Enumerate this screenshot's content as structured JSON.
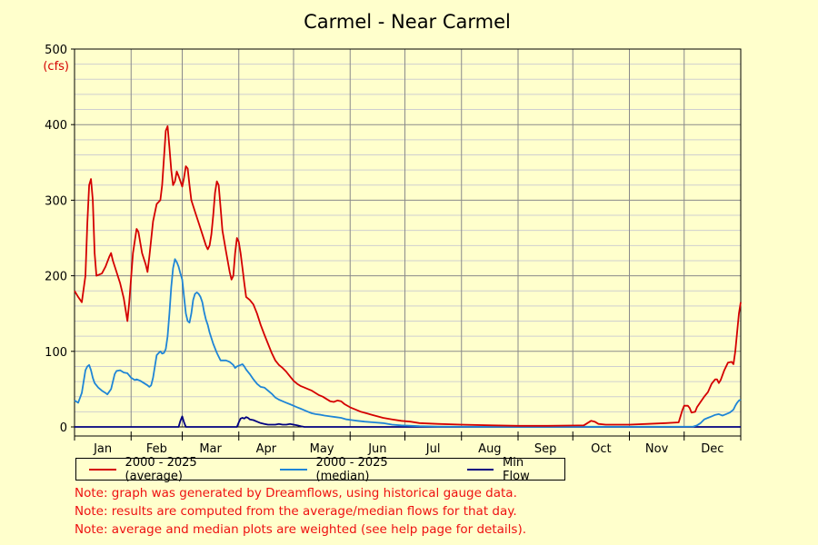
{
  "chart_data": {
    "type": "line",
    "title": "Carmel - Near Carmel",
    "ylabel": "(cfs)",
    "xlabel": "",
    "ylim": [
      0,
      500
    ],
    "xlim": [
      1,
      366
    ],
    "x_unit": "day of year",
    "yticks": [
      0,
      100,
      200,
      300,
      400,
      500
    ],
    "month_labels": [
      "Jan",
      "Feb",
      "Mar",
      "Apr",
      "May",
      "Jun",
      "Jul",
      "Aug",
      "Sep",
      "Oct",
      "Nov",
      "Dec"
    ],
    "month_boundaries": [
      1,
      32,
      60,
      91,
      121,
      152,
      182,
      213,
      244,
      274,
      305,
      335,
      366
    ],
    "grid": true,
    "legend_position": "bottom",
    "series": [
      {
        "name": "2000 - 2025 (average)",
        "color": "#d40000",
        "points": [
          [
            1,
            180
          ],
          [
            3,
            172
          ],
          [
            5,
            165
          ],
          [
            7,
            200
          ],
          [
            8,
            270
          ],
          [
            9,
            320
          ],
          [
            10,
            328
          ],
          [
            11,
            300
          ],
          [
            12,
            230
          ],
          [
            13,
            200
          ],
          [
            16,
            203
          ],
          [
            18,
            212
          ],
          [
            20,
            225
          ],
          [
            21,
            230
          ],
          [
            22,
            220
          ],
          [
            24,
            205
          ],
          [
            26,
            190
          ],
          [
            28,
            170
          ],
          [
            30,
            140
          ],
          [
            31,
            165
          ],
          [
            33,
            230
          ],
          [
            35,
            262
          ],
          [
            36,
            258
          ],
          [
            38,
            230
          ],
          [
            40,
            215
          ],
          [
            41,
            205
          ],
          [
            42,
            225
          ],
          [
            44,
            272
          ],
          [
            46,
            295
          ],
          [
            48,
            300
          ],
          [
            49,
            320
          ],
          [
            51,
            392
          ],
          [
            52,
            398
          ],
          [
            53,
            370
          ],
          [
            54,
            340
          ],
          [
            55,
            320
          ],
          [
            56,
            325
          ],
          [
            57,
            338
          ],
          [
            58,
            332
          ],
          [
            59,
            325
          ],
          [
            60,
            318
          ],
          [
            61,
            330
          ],
          [
            62,
            345
          ],
          [
            63,
            342
          ],
          [
            64,
            320
          ],
          [
            65,
            300
          ],
          [
            67,
            285
          ],
          [
            69,
            270
          ],
          [
            71,
            255
          ],
          [
            73,
            240
          ],
          [
            74,
            235
          ],
          [
            75,
            240
          ],
          [
            76,
            255
          ],
          [
            77,
            280
          ],
          [
            78,
            310
          ],
          [
            79,
            325
          ],
          [
            80,
            320
          ],
          [
            81,
            290
          ],
          [
            82,
            260
          ],
          [
            84,
            232
          ],
          [
            86,
            205
          ],
          [
            87,
            195
          ],
          [
            88,
            200
          ],
          [
            89,
            230
          ],
          [
            90,
            250
          ],
          [
            91,
            245
          ],
          [
            92,
            230
          ],
          [
            93,
            210
          ],
          [
            94,
            190
          ],
          [
            95,
            172
          ],
          [
            97,
            168
          ],
          [
            99,
            162
          ],
          [
            101,
            150
          ],
          [
            103,
            135
          ],
          [
            105,
            122
          ],
          [
            107,
            110
          ],
          [
            109,
            98
          ],
          [
            111,
            88
          ],
          [
            113,
            82
          ],
          [
            115,
            78
          ],
          [
            117,
            73
          ],
          [
            119,
            67
          ],
          [
            121,
            61
          ],
          [
            123,
            57
          ],
          [
            125,
            54
          ],
          [
            127,
            52
          ],
          [
            129,
            50
          ],
          [
            131,
            48
          ],
          [
            133,
            45
          ],
          [
            135,
            42
          ],
          [
            137,
            40
          ],
          [
            139,
            37
          ],
          [
            141,
            34
          ],
          [
            143,
            33
          ],
          [
            145,
            35
          ],
          [
            147,
            34
          ],
          [
            149,
            30
          ],
          [
            152,
            26
          ],
          [
            155,
            23
          ],
          [
            158,
            20
          ],
          [
            161,
            18
          ],
          [
            164,
            16
          ],
          [
            167,
            14
          ],
          [
            170,
            12
          ],
          [
            175,
            10
          ],
          [
            180,
            8
          ],
          [
            185,
            7
          ],
          [
            190,
            5
          ],
          [
            200,
            4
          ],
          [
            213,
            3
          ],
          [
            230,
            2
          ],
          [
            244,
            1.5
          ],
          [
            260,
            1.5
          ],
          [
            280,
            2
          ],
          [
            282,
            5
          ],
          [
            284,
            8
          ],
          [
            286,
            7
          ],
          [
            288,
            4
          ],
          [
            292,
            3
          ],
          [
            305,
            3
          ],
          [
            315,
            4
          ],
          [
            325,
            5
          ],
          [
            332,
            6
          ],
          [
            333,
            14
          ],
          [
            334,
            22
          ],
          [
            335,
            28
          ],
          [
            337,
            28
          ],
          [
            338,
            25
          ],
          [
            339,
            19
          ],
          [
            341,
            20
          ],
          [
            342,
            26
          ],
          [
            344,
            33
          ],
          [
            346,
            40
          ],
          [
            348,
            46
          ],
          [
            350,
            57
          ],
          [
            352,
            63
          ],
          [
            353,
            63
          ],
          [
            354,
            58
          ],
          [
            355,
            62
          ],
          [
            357,
            75
          ],
          [
            359,
            85
          ],
          [
            361,
            86
          ],
          [
            362,
            83
          ],
          [
            363,
            100
          ],
          [
            364,
            125
          ],
          [
            365,
            150
          ],
          [
            366,
            165
          ]
        ]
      },
      {
        "name": "2000 - 2025 (median)",
        "color": "#1f85d6",
        "points": [
          [
            1,
            35
          ],
          [
            3,
            32
          ],
          [
            5,
            45
          ],
          [
            7,
            75
          ],
          [
            8,
            80
          ],
          [
            9,
            82
          ],
          [
            10,
            75
          ],
          [
            11,
            65
          ],
          [
            12,
            58
          ],
          [
            14,
            52
          ],
          [
            16,
            48
          ],
          [
            18,
            45
          ],
          [
            19,
            43
          ],
          [
            21,
            50
          ],
          [
            23,
            70
          ],
          [
            24,
            74
          ],
          [
            26,
            75
          ],
          [
            28,
            72
          ],
          [
            30,
            71
          ],
          [
            32,
            65
          ],
          [
            34,
            62
          ],
          [
            35,
            63
          ],
          [
            37,
            61
          ],
          [
            39,
            58
          ],
          [
            41,
            55
          ],
          [
            42,
            53
          ],
          [
            43,
            55
          ],
          [
            44,
            65
          ],
          [
            45,
            80
          ],
          [
            46,
            95
          ],
          [
            48,
            100
          ],
          [
            49,
            97
          ],
          [
            50,
            98
          ],
          [
            51,
            103
          ],
          [
            52,
            120
          ],
          [
            53,
            150
          ],
          [
            54,
            185
          ],
          [
            55,
            210
          ],
          [
            56,
            222
          ],
          [
            57,
            218
          ],
          [
            58,
            212
          ],
          [
            59,
            203
          ],
          [
            60,
            195
          ],
          [
            61,
            172
          ],
          [
            62,
            150
          ],
          [
            63,
            140
          ],
          [
            64,
            138
          ],
          [
            65,
            150
          ],
          [
            66,
            168
          ],
          [
            67,
            176
          ],
          [
            68,
            178
          ],
          [
            69,
            176
          ],
          [
            70,
            172
          ],
          [
            71,
            165
          ],
          [
            72,
            152
          ],
          [
            73,
            142
          ],
          [
            74,
            135
          ],
          [
            75,
            125
          ],
          [
            77,
            110
          ],
          [
            79,
            98
          ],
          [
            80,
            93
          ],
          [
            81,
            88
          ],
          [
            84,
            88
          ],
          [
            86,
            86
          ],
          [
            88,
            82
          ],
          [
            89,
            78
          ],
          [
            90,
            80
          ],
          [
            92,
            82
          ],
          [
            93,
            83
          ],
          [
            94,
            80
          ],
          [
            95,
            76
          ],
          [
            97,
            70
          ],
          [
            99,
            63
          ],
          [
            101,
            57
          ],
          [
            103,
            53
          ],
          [
            105,
            52
          ],
          [
            107,
            48
          ],
          [
            109,
            44
          ],
          [
            111,
            39
          ],
          [
            113,
            36
          ],
          [
            115,
            34
          ],
          [
            117,
            32
          ],
          [
            119,
            30
          ],
          [
            121,
            28
          ],
          [
            123,
            26
          ],
          [
            125,
            24
          ],
          [
            127,
            22
          ],
          [
            129,
            20
          ],
          [
            131,
            18
          ],
          [
            133,
            17
          ],
          [
            136,
            16
          ],
          [
            138,
            15
          ],
          [
            141,
            14
          ],
          [
            144,
            13
          ],
          [
            147,
            12
          ],
          [
            150,
            10
          ],
          [
            153,
            9
          ],
          [
            156,
            8
          ],
          [
            160,
            7
          ],
          [
            165,
            6
          ],
          [
            170,
            5
          ],
          [
            175,
            3
          ],
          [
            180,
            2
          ],
          [
            190,
            1
          ],
          [
            200,
            0.5
          ],
          [
            220,
            0.3
          ],
          [
            260,
            0.3
          ],
          [
            300,
            0.3
          ],
          [
            340,
            0.5
          ],
          [
            342,
            2
          ],
          [
            344,
            5
          ],
          [
            346,
            10
          ],
          [
            348,
            12
          ],
          [
            350,
            14
          ],
          [
            352,
            16
          ],
          [
            354,
            17
          ],
          [
            356,
            15
          ],
          [
            358,
            17
          ],
          [
            360,
            19
          ],
          [
            362,
            23
          ],
          [
            363,
            28
          ],
          [
            364,
            32
          ],
          [
            365,
            35
          ],
          [
            366,
            36
          ]
        ]
      },
      {
        "name": "Min Flow",
        "color": "#000080",
        "points": [
          [
            1,
            0
          ],
          [
            58,
            0
          ],
          [
            59,
            8
          ],
          [
            60,
            14
          ],
          [
            61,
            6
          ],
          [
            62,
            0
          ],
          [
            90,
            0
          ],
          [
            91,
            6
          ],
          [
            92,
            11
          ],
          [
            93,
            12
          ],
          [
            94,
            11
          ],
          [
            95,
            13
          ],
          [
            96,
            12
          ],
          [
            97,
            10
          ],
          [
            99,
            9
          ],
          [
            101,
            7
          ],
          [
            103,
            5
          ],
          [
            105,
            4
          ],
          [
            107,
            3
          ],
          [
            109,
            3
          ],
          [
            111,
            3
          ],
          [
            113,
            4
          ],
          [
            115,
            3
          ],
          [
            117,
            3
          ],
          [
            119,
            4
          ],
          [
            121,
            3
          ],
          [
            123,
            2
          ],
          [
            125,
            1
          ],
          [
            127,
            0
          ],
          [
            366,
            0
          ]
        ]
      }
    ]
  },
  "notes": [
    "Note: graph was generated by Dreamflows, using historical gauge data.",
    "Note: results are computed from the average/median flows for that day.",
    "Note: average and median plots are weighted (see help page for details)."
  ]
}
